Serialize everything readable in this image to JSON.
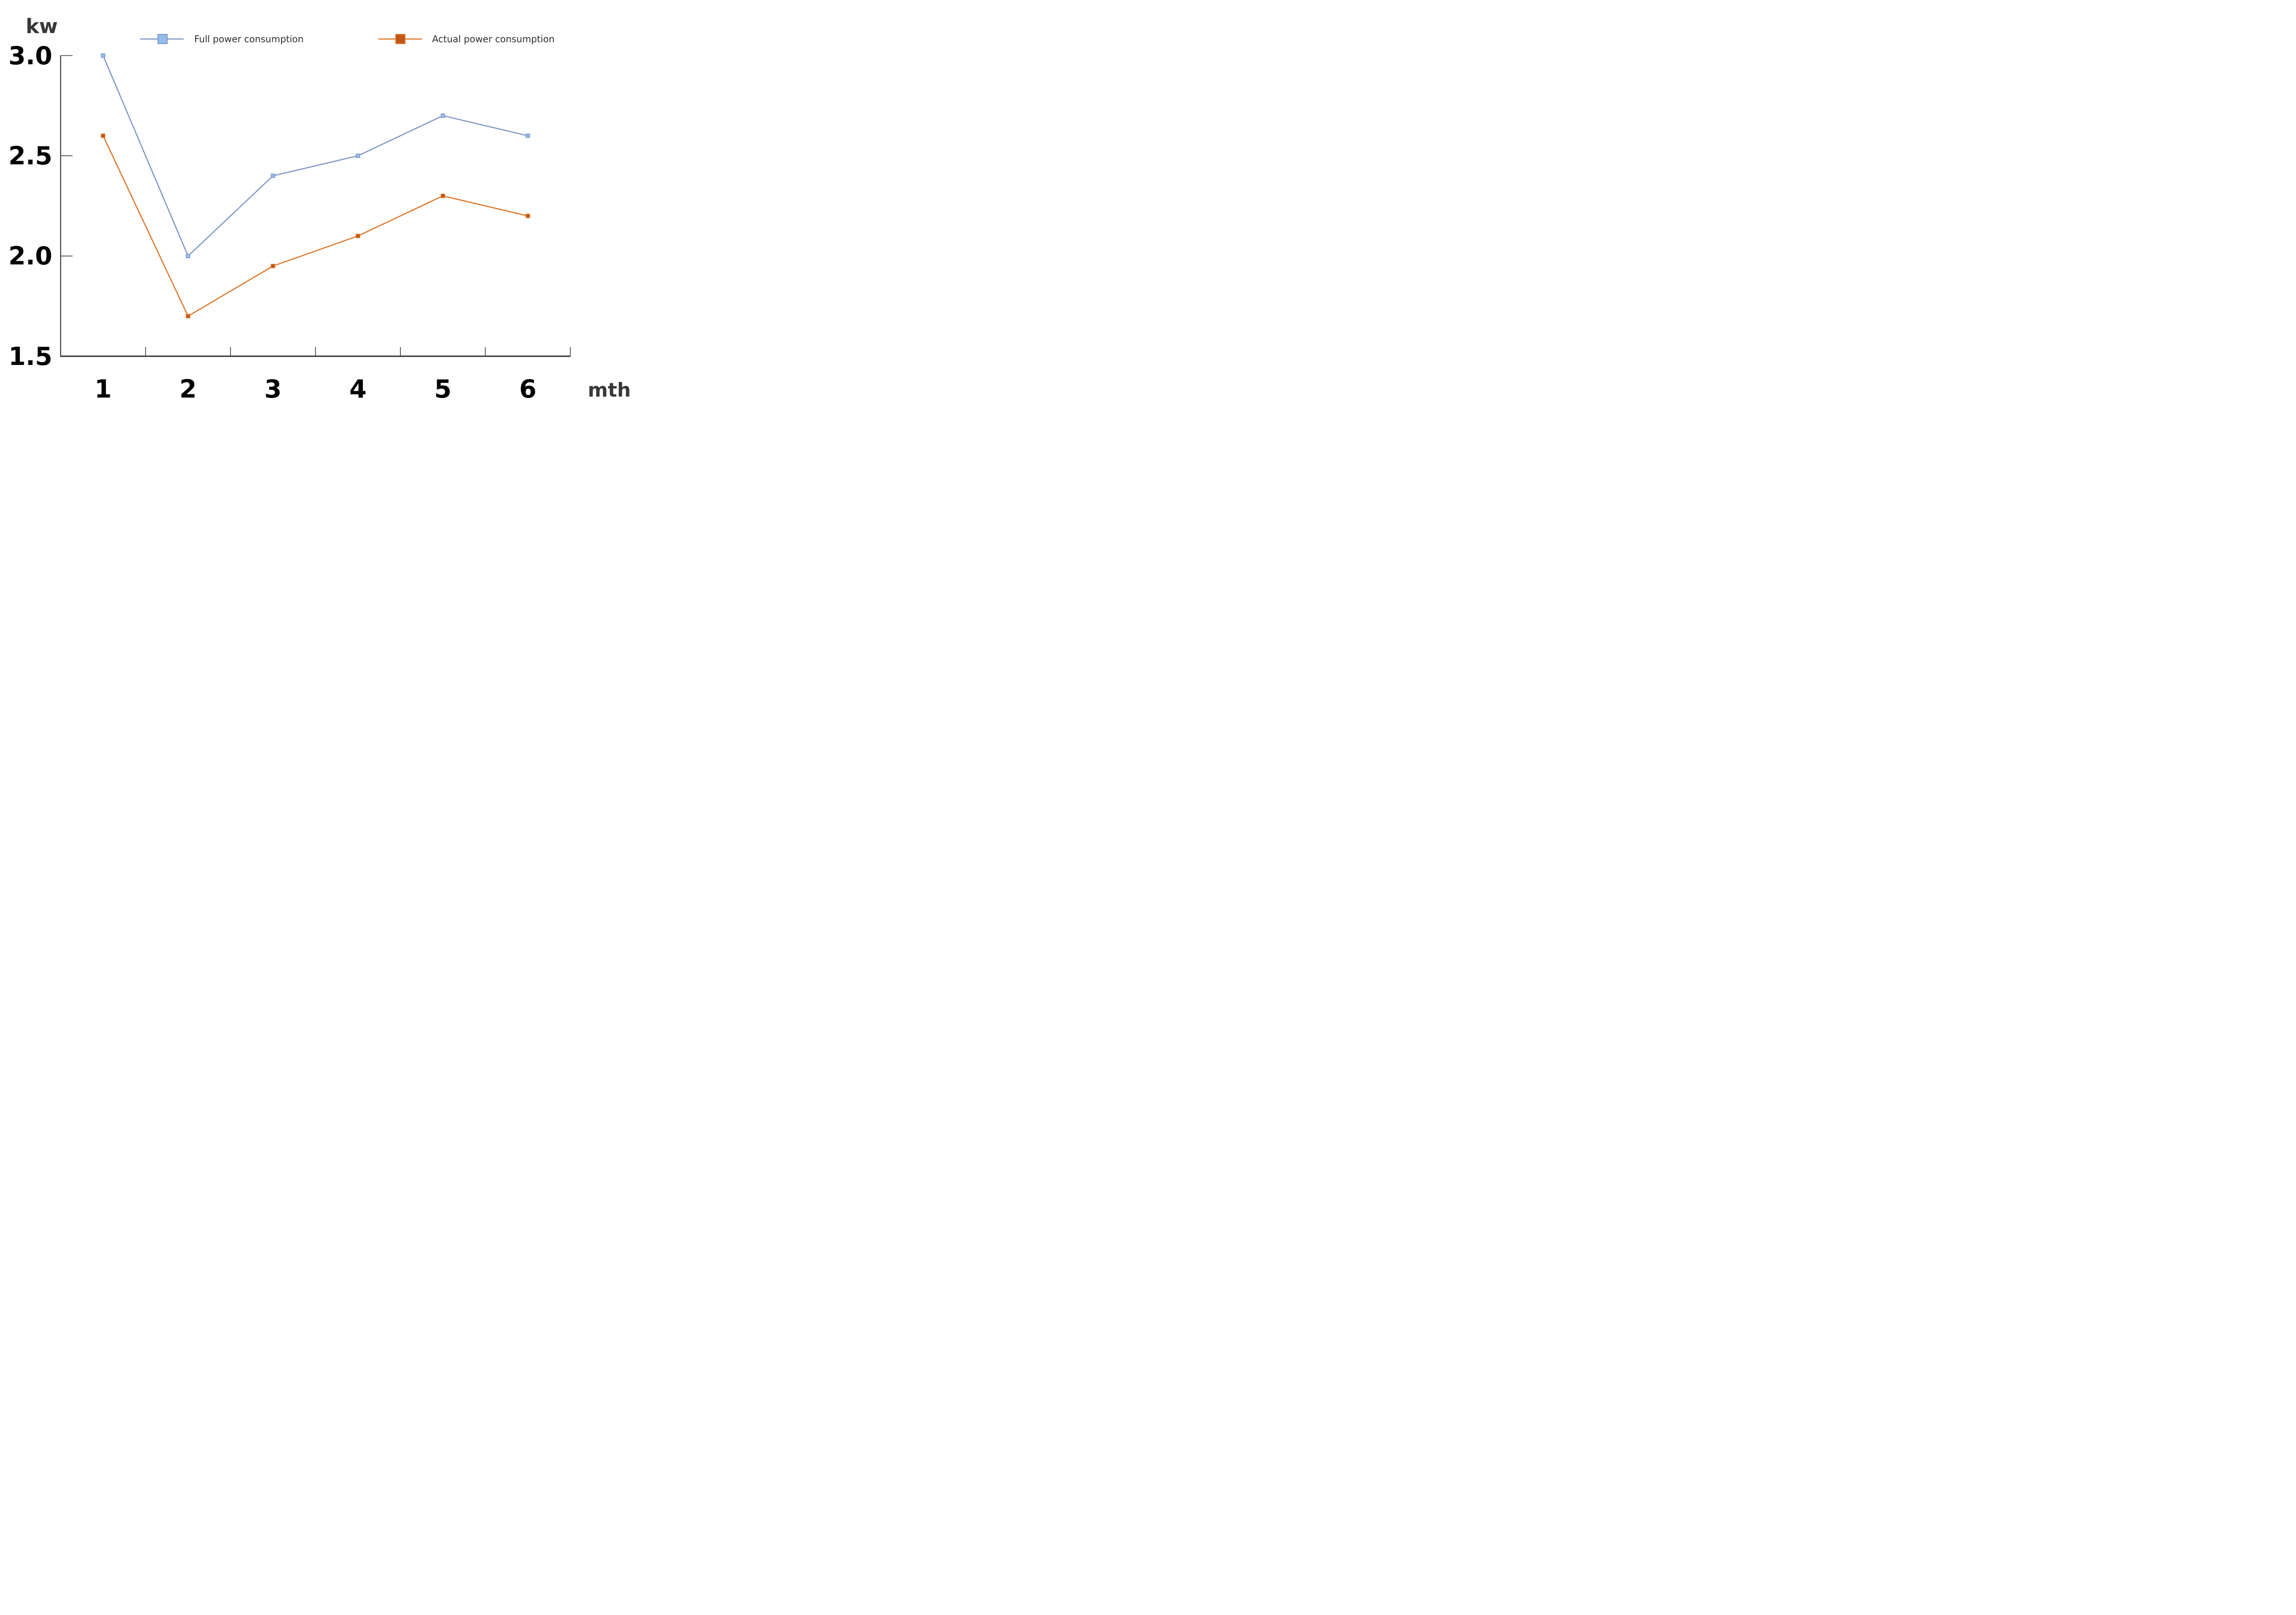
{
  "chart_data": {
    "type": "line",
    "title": "",
    "ylabel": "kw",
    "xlabel": "mth",
    "x": [
      1,
      2,
      3,
      4,
      5,
      6
    ],
    "xtick_labels": [
      "1",
      "2",
      "3",
      "4",
      "5",
      "6"
    ],
    "yticks": [
      3.0,
      2.5,
      2.0,
      1.5
    ],
    "ytick_labels": [
      "3.0",
      "2.5",
      "2.0",
      "1.5"
    ],
    "ylim": [
      1.5,
      3.0
    ],
    "grid": false,
    "legend_position": "top",
    "marker_shape": "square",
    "series": [
      {
        "name": "Full power consumption",
        "values": [
          3.0,
          2.0,
          2.4,
          2.5,
          2.7,
          2.6
        ],
        "line_color": "#7E97C5",
        "marker_fill": "#93BCEB"
      },
      {
        "name": "Actual power consumption",
        "values": [
          2.6,
          1.7,
          1.95,
          2.1,
          2.3,
          2.2
        ],
        "line_color": "#DE7628",
        "marker_fill": "#C0571A"
      }
    ]
  },
  "colors": {
    "axis": "#3C3C3C",
    "baseline": "#333333",
    "tick_number": "#000000",
    "unit_label": "#383838",
    "legend_text": "#2F2F2F",
    "background": "#FFFFFF"
  }
}
